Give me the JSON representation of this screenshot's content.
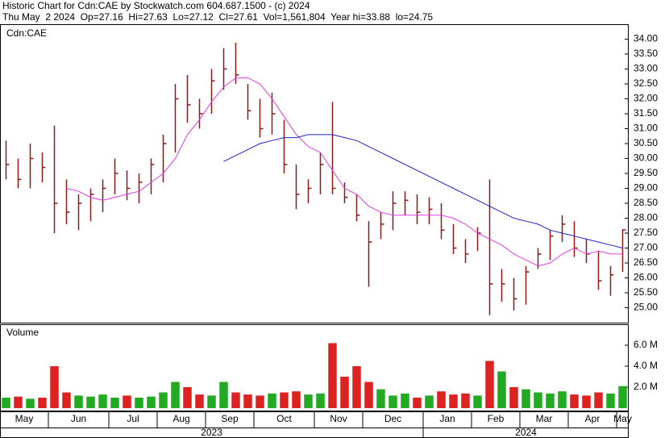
{
  "chart_data": {
    "type": "ohlc",
    "title": "Historic Chart for Cdn:CAE by Stockwatch.com 604.687.1500 - (c) 2024",
    "subtitle": "Thu May  2 2024  Op=27.16  Hi=27.63  Lo=27.12  Cl=27.61  Vol=1,561,804  Year hi=33.88  lo=24.75",
    "symbol": "Cdn:CAE",
    "categories": [
      "May",
      null,
      null,
      null,
      "Jun",
      null,
      null,
      null,
      null,
      "Jul",
      null,
      null,
      null,
      "Aug",
      null,
      null,
      null,
      "Sep",
      null,
      null,
      null,
      "Oct",
      null,
      null,
      null,
      null,
      "Nov",
      null,
      null,
      null,
      "Dec",
      null,
      null,
      null,
      null,
      "Jan",
      null,
      null,
      null,
      "Feb",
      null,
      null,
      null,
      "Mar",
      null,
      null,
      null,
      "Apr",
      null,
      null,
      null,
      "May"
    ],
    "years": [
      "2023",
      null,
      null,
      null,
      null,
      null,
      null,
      null,
      null,
      null,
      null,
      null,
      null,
      null,
      null,
      null,
      null,
      null,
      null,
      null,
      null,
      null,
      null,
      null,
      null,
      null,
      null,
      null,
      null,
      null,
      null,
      null,
      null,
      null,
      null,
      "2024",
      null,
      null,
      null,
      null,
      null,
      null,
      null,
      null,
      null,
      null,
      null,
      null,
      null,
      null,
      null,
      null
    ],
    "price": {
      "color": "#8b1a1a",
      "high": [
        30.6,
        30.0,
        30.5,
        30.2,
        31.1,
        29.3,
        28.8,
        29.0,
        29.3,
        30.0,
        29.6,
        29.5,
        30.0,
        30.8,
        32.5,
        32.8,
        32.0,
        33.0,
        33.7,
        33.88,
        32.5,
        32.0,
        32.2,
        31.3,
        29.8,
        29.3,
        30.2,
        31.9,
        29.2,
        28.8,
        27.9,
        28.2,
        28.9,
        28.9,
        28.8,
        28.7,
        28.5,
        27.8,
        27.3,
        27.7,
        29.3,
        26.3,
        26.0,
        26.4,
        27.0,
        27.6,
        28.1,
        27.9,
        27.3,
        26.9,
        26.4,
        27.63
      ],
      "low": [
        29.3,
        29.0,
        29.0,
        29.2,
        27.5,
        27.8,
        27.6,
        27.9,
        28.2,
        28.8,
        28.6,
        28.5,
        28.8,
        29.2,
        30.2,
        31.2,
        31.0,
        31.5,
        32.3,
        32.5,
        31.3,
        30.7,
        30.8,
        29.5,
        28.3,
        28.5,
        28.8,
        28.8,
        28.5,
        27.9,
        25.7,
        27.3,
        27.6,
        28.1,
        27.8,
        27.8,
        27.3,
        26.8,
        26.5,
        26.9,
        24.75,
        25.2,
        24.9,
        25.1,
        26.3,
        26.6,
        27.2,
        26.7,
        26.5,
        25.6,
        25.4,
        26.2
      ],
      "close": [
        29.8,
        29.3,
        30.0,
        29.7,
        28.5,
        28.2,
        28.5,
        28.8,
        29.0,
        29.5,
        29.0,
        29.2,
        29.8,
        30.5,
        32.0,
        31.8,
        31.5,
        32.6,
        33.0,
        32.8,
        31.6,
        31.0,
        31.5,
        29.8,
        28.8,
        29.0,
        29.8,
        29.0,
        28.7,
        28.1,
        27.2,
        27.8,
        28.5,
        28.6,
        28.2,
        28.3,
        27.6,
        27.0,
        26.8,
        27.5,
        25.8,
        25.8,
        25.3,
        26.2,
        26.8,
        27.4,
        27.8,
        27.0,
        26.8,
        25.9,
        26.1,
        27.61
      ]
    },
    "moving_averages": [
      {
        "color": "#e03ce0",
        "values": [
          null,
          null,
          null,
          null,
          null,
          29.0,
          28.9,
          28.7,
          28.6,
          28.7,
          28.8,
          28.9,
          29.2,
          29.5,
          30.0,
          30.8,
          31.3,
          31.9,
          32.4,
          32.7,
          32.7,
          32.5,
          32.0,
          31.4,
          30.8,
          30.4,
          30.2,
          29.6,
          29.0,
          28.8,
          28.4,
          28.2,
          28.1,
          28.1,
          28.1,
          28.1,
          28.1,
          28.0,
          27.8,
          27.5,
          27.3,
          27.1,
          26.8,
          26.6,
          26.4,
          26.5,
          26.8,
          27.0,
          26.8,
          26.9,
          26.8,
          26.8
        ]
      },
      {
        "color": "#2020c8",
        "values": [
          null,
          null,
          null,
          null,
          null,
          null,
          null,
          null,
          null,
          null,
          null,
          null,
          null,
          null,
          null,
          null,
          null,
          null,
          29.9,
          30.1,
          30.3,
          30.5,
          30.6,
          30.7,
          30.7,
          30.8,
          30.8,
          30.8,
          30.7,
          30.6,
          30.4,
          30.2,
          30.0,
          29.8,
          29.6,
          29.4,
          29.2,
          29.0,
          28.8,
          28.6,
          28.4,
          28.2,
          28.0,
          27.9,
          27.8,
          27.6,
          27.5,
          27.4,
          27.3,
          27.2,
          27.1,
          27.0
        ]
      }
    ],
    "ylim": [
      24.5,
      34.5
    ],
    "yticks": [
      {
        "value": 25,
        "label": "25.00"
      },
      {
        "value": 25.5,
        "label": "25.50"
      },
      {
        "value": 26,
        "label": "26.00"
      },
      {
        "value": 26.5,
        "label": "26.50"
      },
      {
        "value": 27,
        "label": "27.00"
      },
      {
        "value": 27.5,
        "label": "27.50"
      },
      {
        "value": 28,
        "label": "28.00"
      },
      {
        "value": 28.5,
        "label": "28.50"
      },
      {
        "value": 29,
        "label": "29.00"
      },
      {
        "value": 29.5,
        "label": "29.50"
      },
      {
        "value": 30,
        "label": "30.00"
      },
      {
        "value": 30.5,
        "label": "30.50"
      },
      {
        "value": 31,
        "label": "31.00"
      },
      {
        "value": 31.5,
        "label": "31.50"
      },
      {
        "value": 32,
        "label": "32.00"
      },
      {
        "value": 32.5,
        "label": "32.50"
      },
      {
        "value": 33,
        "label": "33.00"
      },
      {
        "value": 33.5,
        "label": "33.50"
      },
      {
        "value": 34,
        "label": "34.00"
      }
    ],
    "volume": {
      "label": "Volume",
      "up_color": "#22aa22",
      "down_color": "#dd2222",
      "values": [
        1000000,
        1100000,
        900000,
        1000000,
        4000000,
        1500000,
        1200000,
        1100000,
        1300000,
        1000000,
        1200000,
        1000000,
        1100000,
        1500000,
        2500000,
        2000000,
        1300000,
        1200000,
        2500000,
        1500000,
        1300000,
        1200000,
        1400000,
        1500000,
        1600000,
        1300000,
        1400000,
        6200000,
        3000000,
        4000000,
        2500000,
        1800000,
        1200000,
        1400000,
        1000000,
        1200000,
        1600000,
        1300000,
        1400000,
        1200000,
        4500000,
        3500000,
        2000000,
        1800000,
        1500000,
        1400000,
        1600000,
        1300000,
        1200000,
        1500000,
        1400000,
        2100000
      ],
      "ylim": [
        0,
        8000000
      ],
      "yticks": [
        {
          "value": 2000000,
          "label": "2.0 M"
        },
        {
          "value": 4000000,
          "label": "4.0 M"
        },
        {
          "value": 6000000,
          "label": "6.0 M"
        }
      ]
    }
  }
}
